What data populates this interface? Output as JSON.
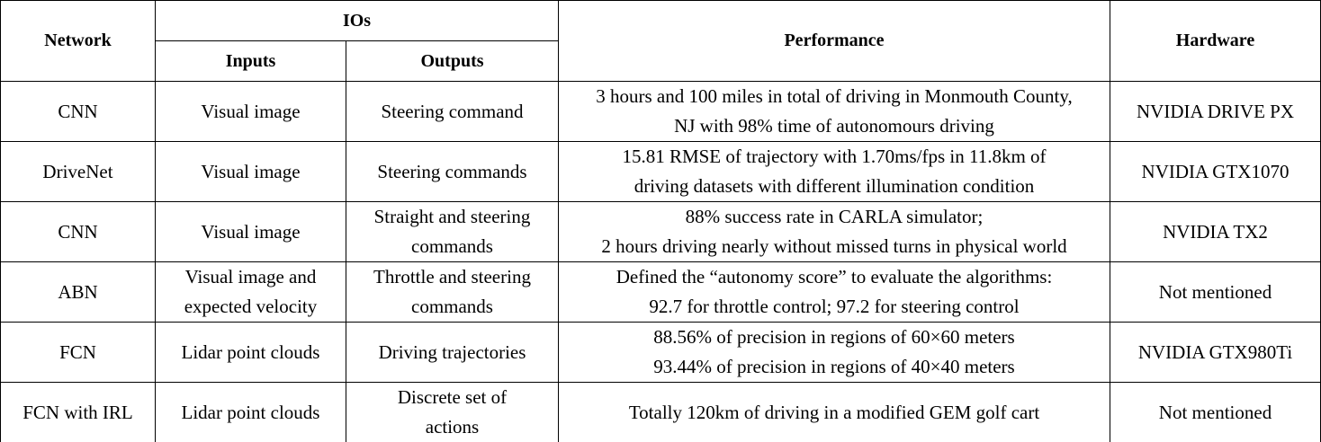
{
  "table": {
    "header": {
      "network": "Network",
      "ios": "IOs",
      "inputs": "Inputs",
      "outputs": "Outputs",
      "performance": "Performance",
      "hardware": "Hardware"
    },
    "rows": [
      [
        [
          "CNN"
        ],
        [
          "Visual image"
        ],
        [
          "Steering command"
        ],
        [
          "3 hours and 100 miles in total of driving in Monmouth County,",
          "NJ with 98% time of autonomours driving"
        ],
        [
          "NVIDIA DRIVE PX"
        ]
      ],
      [
        [
          "DriveNet"
        ],
        [
          "Visual image"
        ],
        [
          "Steering commands"
        ],
        [
          "15.81 RMSE of trajectory with 1.70ms/fps in 11.8km of",
          "driving datasets with different illumination condition"
        ],
        [
          "NVIDIA GTX1070"
        ]
      ],
      [
        [
          "CNN"
        ],
        [
          "Visual image"
        ],
        [
          "Straight and steering",
          "commands"
        ],
        [
          "88% success rate in CARLA simulator;",
          "2 hours driving nearly without missed turns in physical world"
        ],
        [
          "NVIDIA TX2"
        ]
      ],
      [
        [
          "ABN"
        ],
        [
          "Visual image and",
          "expected velocity"
        ],
        [
          "Throttle and steering",
          "commands"
        ],
        [
          "Defined the “autonomy score” to evaluate the algorithms:",
          "92.7 for throttle control; 97.2 for steering control"
        ],
        [
          "Not mentioned"
        ]
      ],
      [
        [
          "FCN"
        ],
        [
          "Lidar point clouds"
        ],
        [
          "Driving trajectories"
        ],
        [
          "88.56% of precision in regions of 60×60 meters",
          "93.44% of precision in regions of 40×40 meters"
        ],
        [
          "NVIDIA GTX980Ti"
        ]
      ],
      [
        [
          "FCN with IRL"
        ],
        [
          "Lidar point clouds"
        ],
        [
          "Discrete set of",
          "actions"
        ],
        [
          "Totally 120km of driving in a modified GEM golf cart"
        ],
        [
          "Not mentioned"
        ]
      ]
    ]
  }
}
